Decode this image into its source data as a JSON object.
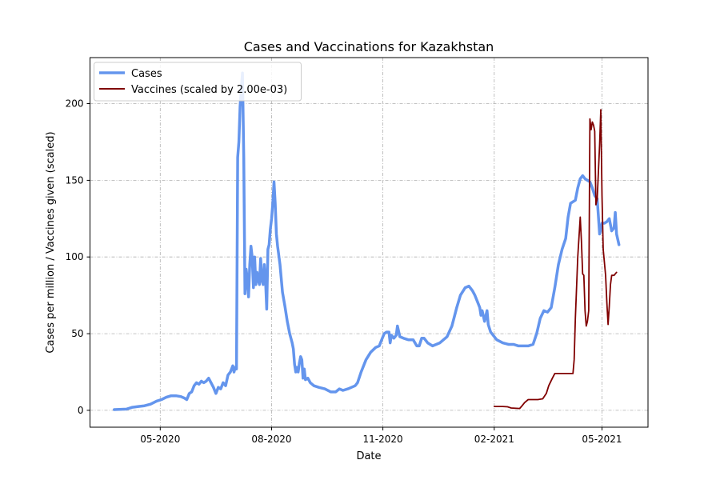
{
  "chart_data": {
    "type": "line",
    "title": "Cases and Vaccinations for Kazakhstan",
    "xlabel": "Date",
    "ylabel": "Cases per million / Vaccines given (scaled)",
    "x_ticks": [
      {
        "date": "2020-05-01",
        "label": "05-2020"
      },
      {
        "date": "2020-08-01",
        "label": "08-2020"
      },
      {
        "date": "2020-11-01",
        "label": "11-2020"
      },
      {
        "date": "2021-02-01",
        "label": "02-2021"
      },
      {
        "date": "2021-05-01",
        "label": "05-2021"
      }
    ],
    "y_ticks": [
      0,
      50,
      100,
      150,
      200
    ],
    "xlim": [
      "2020-03-04",
      "2021-06-08"
    ],
    "ylim": [
      -11,
      230
    ],
    "grid": true,
    "legend_position": "top-left",
    "series": [
      {
        "name": "Cases",
        "color": "#6495ED",
        "points": [
          [
            "2020-03-24",
            0.5
          ],
          [
            "2020-04-03",
            0.8
          ],
          [
            "2020-04-08",
            2
          ],
          [
            "2020-04-13",
            2.5
          ],
          [
            "2020-04-18",
            3
          ],
          [
            "2020-04-23",
            4
          ],
          [
            "2020-04-28",
            6
          ],
          [
            "2020-05-02",
            7
          ],
          [
            "2020-05-06",
            8.5
          ],
          [
            "2020-05-10",
            9.5
          ],
          [
            "2020-05-14",
            9.5
          ],
          [
            "2020-05-18",
            9
          ],
          [
            "2020-05-21",
            8
          ],
          [
            "2020-05-23",
            7
          ],
          [
            "2020-05-25",
            11
          ],
          [
            "2020-05-27",
            12
          ],
          [
            "2020-05-29",
            16
          ],
          [
            "2020-05-31",
            18
          ],
          [
            "2020-06-02",
            17
          ],
          [
            "2020-06-04",
            19
          ],
          [
            "2020-06-06",
            18
          ],
          [
            "2020-06-08",
            19
          ],
          [
            "2020-06-10",
            21
          ],
          [
            "2020-06-12",
            18
          ],
          [
            "2020-06-14",
            15
          ],
          [
            "2020-06-16",
            11
          ],
          [
            "2020-06-18",
            15
          ],
          [
            "2020-06-20",
            14
          ],
          [
            "2020-06-22",
            18
          ],
          [
            "2020-06-24",
            16
          ],
          [
            "2020-06-26",
            23
          ],
          [
            "2020-06-28",
            25
          ],
          [
            "2020-06-30",
            29
          ],
          [
            "2020-07-01",
            25
          ],
          [
            "2020-07-02",
            28
          ],
          [
            "2020-07-03",
            27
          ],
          [
            "2020-07-04",
            165
          ],
          [
            "2020-07-05",
            175
          ],
          [
            "2020-07-06",
            198
          ],
          [
            "2020-07-07",
            210
          ],
          [
            "2020-07-08",
            220
          ],
          [
            "2020-07-09",
            165
          ],
          [
            "2020-07-10",
            76
          ],
          [
            "2020-07-11",
            92
          ],
          [
            "2020-07-12",
            85
          ],
          [
            "2020-07-13",
            74
          ],
          [
            "2020-07-14",
            95
          ],
          [
            "2020-07-15",
            107
          ],
          [
            "2020-07-16",
            100
          ],
          [
            "2020-07-17",
            80
          ],
          [
            "2020-07-18",
            100
          ],
          [
            "2020-07-19",
            82
          ],
          [
            "2020-07-20",
            90
          ],
          [
            "2020-07-21",
            85
          ],
          [
            "2020-07-22",
            82
          ],
          [
            "2020-07-23",
            99
          ],
          [
            "2020-07-24",
            85
          ],
          [
            "2020-07-25",
            82
          ],
          [
            "2020-07-26",
            95
          ],
          [
            "2020-07-27",
            85
          ],
          [
            "2020-07-28",
            66
          ],
          [
            "2020-07-29",
            105
          ],
          [
            "2020-07-30",
            108
          ],
          [
            "2020-07-31",
            118
          ],
          [
            "2020-08-01",
            125
          ],
          [
            "2020-08-02",
            135
          ],
          [
            "2020-08-03",
            149
          ],
          [
            "2020-08-04",
            135
          ],
          [
            "2020-08-05",
            115
          ],
          [
            "2020-08-06",
            107
          ],
          [
            "2020-08-08",
            95
          ],
          [
            "2020-08-10",
            77
          ],
          [
            "2020-08-12",
            68
          ],
          [
            "2020-08-14",
            58
          ],
          [
            "2020-08-16",
            50
          ],
          [
            "2020-08-18",
            44
          ],
          [
            "2020-08-19",
            40
          ],
          [
            "2020-08-20",
            30
          ],
          [
            "2020-08-21",
            25
          ],
          [
            "2020-08-22",
            28
          ],
          [
            "2020-08-23",
            25
          ],
          [
            "2020-08-24",
            31
          ],
          [
            "2020-08-25",
            35
          ],
          [
            "2020-08-26",
            33
          ],
          [
            "2020-08-27",
            21
          ],
          [
            "2020-08-28",
            27
          ],
          [
            "2020-08-29",
            20
          ],
          [
            "2020-08-31",
            21
          ],
          [
            "2020-09-02",
            18
          ],
          [
            "2020-09-05",
            16
          ],
          [
            "2020-09-09",
            15
          ],
          [
            "2020-09-14",
            14
          ],
          [
            "2020-09-19",
            12
          ],
          [
            "2020-09-23",
            12
          ],
          [
            "2020-09-26",
            14
          ],
          [
            "2020-09-29",
            13
          ],
          [
            "2020-10-03",
            14
          ],
          [
            "2020-10-06",
            15
          ],
          [
            "2020-10-09",
            16
          ],
          [
            "2020-10-11",
            18
          ],
          [
            "2020-10-14",
            25
          ],
          [
            "2020-10-18",
            33
          ],
          [
            "2020-10-22",
            38
          ],
          [
            "2020-10-26",
            41
          ],
          [
            "2020-10-29",
            42
          ],
          [
            "2020-10-31",
            46
          ],
          [
            "2020-11-02",
            50
          ],
          [
            "2020-11-04",
            51
          ],
          [
            "2020-11-06",
            51
          ],
          [
            "2020-11-07",
            44
          ],
          [
            "2020-11-08",
            49
          ],
          [
            "2020-11-10",
            47
          ],
          [
            "2020-11-12",
            49
          ],
          [
            "2020-11-13",
            55
          ],
          [
            "2020-11-15",
            48
          ],
          [
            "2020-11-18",
            47
          ],
          [
            "2020-11-22",
            46
          ],
          [
            "2020-11-26",
            46
          ],
          [
            "2020-11-29",
            42
          ],
          [
            "2020-12-01",
            42
          ],
          [
            "2020-12-03",
            47
          ],
          [
            "2020-12-05",
            47
          ],
          [
            "2020-12-08",
            44
          ],
          [
            "2020-12-12",
            42
          ],
          [
            "2020-12-18",
            44
          ],
          [
            "2020-12-24",
            48
          ],
          [
            "2020-12-28",
            55
          ],
          [
            "2021-01-01",
            67
          ],
          [
            "2021-01-04",
            75
          ],
          [
            "2021-01-08",
            80
          ],
          [
            "2021-01-11",
            81
          ],
          [
            "2021-01-14",
            78
          ],
          [
            "2021-01-16",
            75
          ],
          [
            "2021-01-18",
            71
          ],
          [
            "2021-01-20",
            67
          ],
          [
            "2021-01-21",
            62
          ],
          [
            "2021-01-22",
            65
          ],
          [
            "2021-01-24",
            58
          ],
          [
            "2021-01-26",
            65
          ],
          [
            "2021-01-27",
            56
          ],
          [
            "2021-01-29",
            51
          ],
          [
            "2021-02-03",
            46
          ],
          [
            "2021-02-08",
            44
          ],
          [
            "2021-02-13",
            43
          ],
          [
            "2021-02-17",
            43
          ],
          [
            "2021-02-21",
            42
          ],
          [
            "2021-02-25",
            42
          ],
          [
            "2021-03-01",
            42
          ],
          [
            "2021-03-05",
            43
          ],
          [
            "2021-03-08",
            50
          ],
          [
            "2021-03-11",
            60
          ],
          [
            "2021-03-14",
            65
          ],
          [
            "2021-03-17",
            64
          ],
          [
            "2021-03-20",
            67
          ],
          [
            "2021-03-23",
            80
          ],
          [
            "2021-03-26",
            95
          ],
          [
            "2021-03-29",
            105
          ],
          [
            "2021-04-01",
            112
          ],
          [
            "2021-04-03",
            126
          ],
          [
            "2021-04-05",
            135
          ],
          [
            "2021-04-07",
            136
          ],
          [
            "2021-04-09",
            137
          ],
          [
            "2021-04-11",
            145
          ],
          [
            "2021-04-13",
            151
          ],
          [
            "2021-04-15",
            153
          ],
          [
            "2021-04-17",
            151
          ],
          [
            "2021-04-19",
            150
          ],
          [
            "2021-04-21",
            149
          ],
          [
            "2021-04-23",
            145
          ],
          [
            "2021-04-25",
            140
          ],
          [
            "2021-04-27",
            138
          ],
          [
            "2021-04-29",
            115
          ],
          [
            "2021-05-01",
            122
          ],
          [
            "2021-05-03",
            122
          ],
          [
            "2021-05-05",
            123
          ],
          [
            "2021-05-07",
            125
          ],
          [
            "2021-05-09",
            117
          ],
          [
            "2021-05-11",
            119
          ],
          [
            "2021-05-12",
            129
          ],
          [
            "2021-05-13",
            115
          ],
          [
            "2021-05-15",
            108
          ]
        ]
      },
      {
        "name": "Vaccines (scaled by 2.00e-03)",
        "color": "#800000",
        "points": [
          [
            "2021-02-01",
            2.5
          ],
          [
            "2021-02-08",
            2.5
          ],
          [
            "2021-02-12",
            2.3
          ],
          [
            "2021-02-15",
            1.5
          ],
          [
            "2021-02-22",
            1.2
          ],
          [
            "2021-02-24",
            3
          ],
          [
            "2021-02-26",
            5
          ],
          [
            "2021-03-01",
            7
          ],
          [
            "2021-03-05",
            7
          ],
          [
            "2021-03-09",
            7
          ],
          [
            "2021-03-13",
            7.5
          ],
          [
            "2021-03-16",
            11
          ],
          [
            "2021-03-18",
            16
          ],
          [
            "2021-03-21",
            21
          ],
          [
            "2021-03-23",
            24
          ],
          [
            "2021-03-28",
            24
          ],
          [
            "2021-04-01",
            24
          ],
          [
            "2021-04-05",
            24
          ],
          [
            "2021-04-07",
            24
          ],
          [
            "2021-04-08",
            33
          ],
          [
            "2021-04-09",
            60
          ],
          [
            "2021-04-10",
            80
          ],
          [
            "2021-04-11",
            100
          ],
          [
            "2021-04-13",
            126
          ],
          [
            "2021-04-14",
            110
          ],
          [
            "2021-04-15",
            89
          ],
          [
            "2021-04-16",
            88
          ],
          [
            "2021-04-17",
            65
          ],
          [
            "2021-04-18",
            55
          ],
          [
            "2021-04-19",
            58
          ],
          [
            "2021-04-20",
            65
          ],
          [
            "2021-04-21",
            190
          ],
          [
            "2021-04-22",
            183
          ],
          [
            "2021-04-23",
            188
          ],
          [
            "2021-04-24",
            186
          ],
          [
            "2021-04-25",
            182
          ],
          [
            "2021-04-26",
            134
          ],
          [
            "2021-04-27",
            138
          ],
          [
            "2021-04-29",
            173
          ],
          [
            "2021-04-30",
            196
          ],
          [
            "2021-05-01",
            140
          ],
          [
            "2021-05-02",
            105
          ],
          [
            "2021-05-04",
            88
          ],
          [
            "2021-05-05",
            70
          ],
          [
            "2021-05-06",
            56
          ],
          [
            "2021-05-07",
            68
          ],
          [
            "2021-05-08",
            82
          ],
          [
            "2021-05-09",
            88
          ],
          [
            "2021-05-11",
            88
          ],
          [
            "2021-05-12",
            89
          ],
          [
            "2021-05-13",
            90
          ]
        ]
      }
    ]
  }
}
